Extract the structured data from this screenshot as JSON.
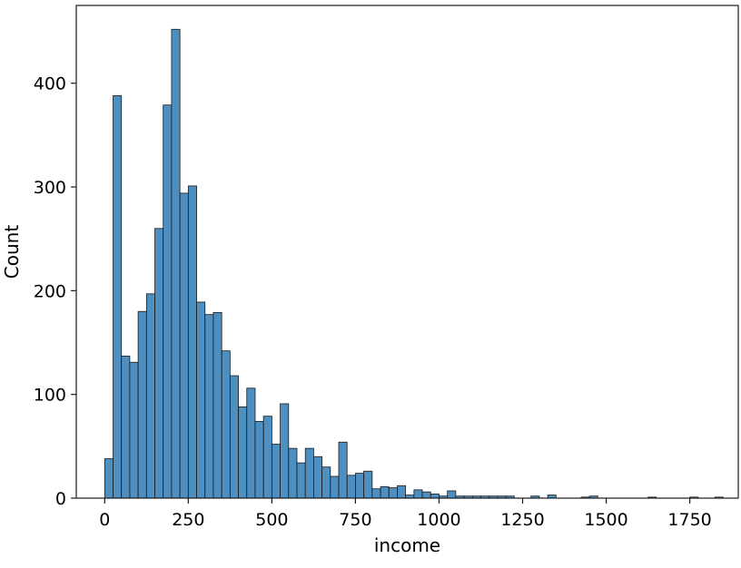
{
  "chart_data": {
    "type": "bar",
    "title": "",
    "xlabel": "income",
    "ylabel": "Count",
    "xlim": [
      -85,
      1895
    ],
    "ylim": [
      0,
      475
    ],
    "x_ticks": [
      0,
      250,
      500,
      750,
      1000,
      1250,
      1500,
      1750
    ],
    "y_ticks": [
      0,
      100,
      200,
      300,
      400
    ],
    "bar_color": "#4c8fc0",
    "edge_color": "#1a1a1a",
    "bin_width": 25,
    "bins_start": [
      0,
      25,
      50,
      75,
      100,
      125,
      150,
      175,
      200,
      225,
      250,
      275,
      300,
      325,
      350,
      375,
      400,
      425,
      450,
      475,
      500,
      525,
      550,
      575,
      600,
      625,
      650,
      675,
      700,
      725,
      750,
      775,
      800,
      825,
      850,
      875,
      900,
      925,
      950,
      975,
      1000,
      1025,
      1050,
      1075,
      1100,
      1125,
      1150,
      1175,
      1200,
      1225,
      1250,
      1275,
      1300,
      1325,
      1350,
      1375,
      1400,
      1425,
      1450,
      1475,
      1500,
      1525,
      1550,
      1575,
      1600,
      1625,
      1650,
      1675,
      1700,
      1725,
      1750,
      1775,
      1800,
      1825,
      1850,
      1875
    ],
    "values": [
      38,
      388,
      137,
      131,
      180,
      197,
      260,
      379,
      452,
      294,
      301,
      189,
      177,
      179,
      142,
      118,
      88,
      106,
      74,
      79,
      52,
      91,
      48,
      34,
      48,
      40,
      30,
      21,
      54,
      22,
      24,
      26,
      9,
      11,
      10,
      12,
      3,
      8,
      6,
      4,
      2,
      7,
      2,
      2,
      2,
      2,
      2,
      2,
      2,
      0,
      0,
      2,
      0,
      3,
      0,
      0,
      0,
      1,
      2,
      0,
      0,
      0,
      0,
      0,
      0,
      1,
      0,
      0,
      0,
      0,
      1,
      0,
      0,
      1,
      0,
      0
    ]
  }
}
